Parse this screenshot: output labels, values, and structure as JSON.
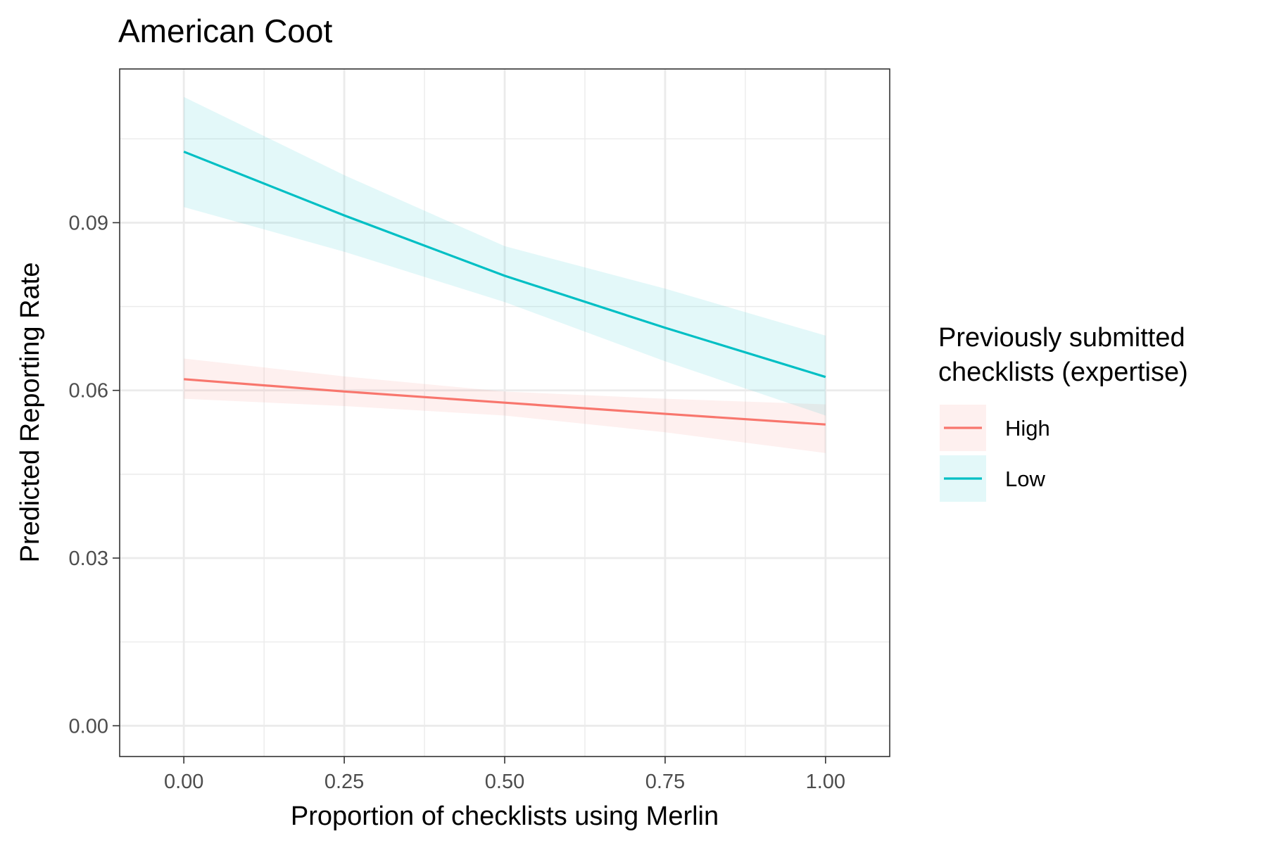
{
  "chart_data": {
    "type": "line",
    "title": "American Coot",
    "xlabel": "Proportion of checklists using Merlin",
    "ylabel": "Predicted Reporting Rate",
    "xlim": [
      -0.1,
      1.1
    ],
    "ylim": [
      -0.0055,
      0.1175
    ],
    "x_ticks": [
      0,
      0.25,
      0.5,
      0.75,
      1
    ],
    "x_tick_labels": [
      "0.00",
      "0.25",
      "0.50",
      "0.75",
      "1.00"
    ],
    "y_ticks": [
      0,
      0.03,
      0.06,
      0.09
    ],
    "y_tick_labels": [
      "0.00",
      "0.03",
      "0.06",
      "0.09"
    ],
    "x_minor": [
      0.125,
      0.375,
      0.625,
      0.875
    ],
    "y_minor": [
      0.015,
      0.045,
      0.075,
      0.105
    ],
    "grid": true,
    "legend_title": "Previously submitted checklists (expertise)",
    "legend_title_lines": [
      "Previously submitted",
      "checklists (expertise)"
    ],
    "legend_position": "right",
    "series": [
      {
        "name": "High",
        "color": "#F8766D",
        "x": [
          0,
          0.25,
          0.5,
          0.75,
          1
        ],
        "y": [
          0.062,
          0.0598,
          0.0578,
          0.0558,
          0.0539
        ],
        "lower": [
          0.0585,
          0.0572,
          0.0555,
          0.0525,
          0.0488
        ],
        "upper": [
          0.0657,
          0.0625,
          0.0598,
          0.0585,
          0.0575
        ]
      },
      {
        "name": "Low",
        "color": "#00BFC4",
        "x": [
          0,
          0.25,
          0.5,
          0.75,
          1
        ],
        "y": [
          0.1027,
          0.0913,
          0.0805,
          0.0712,
          0.0624
        ],
        "lower": [
          0.0928,
          0.0848,
          0.0758,
          0.0652,
          0.0555
        ],
        "upper": [
          0.1125,
          0.0985,
          0.0858,
          0.0782,
          0.0698
        ]
      }
    ]
  }
}
